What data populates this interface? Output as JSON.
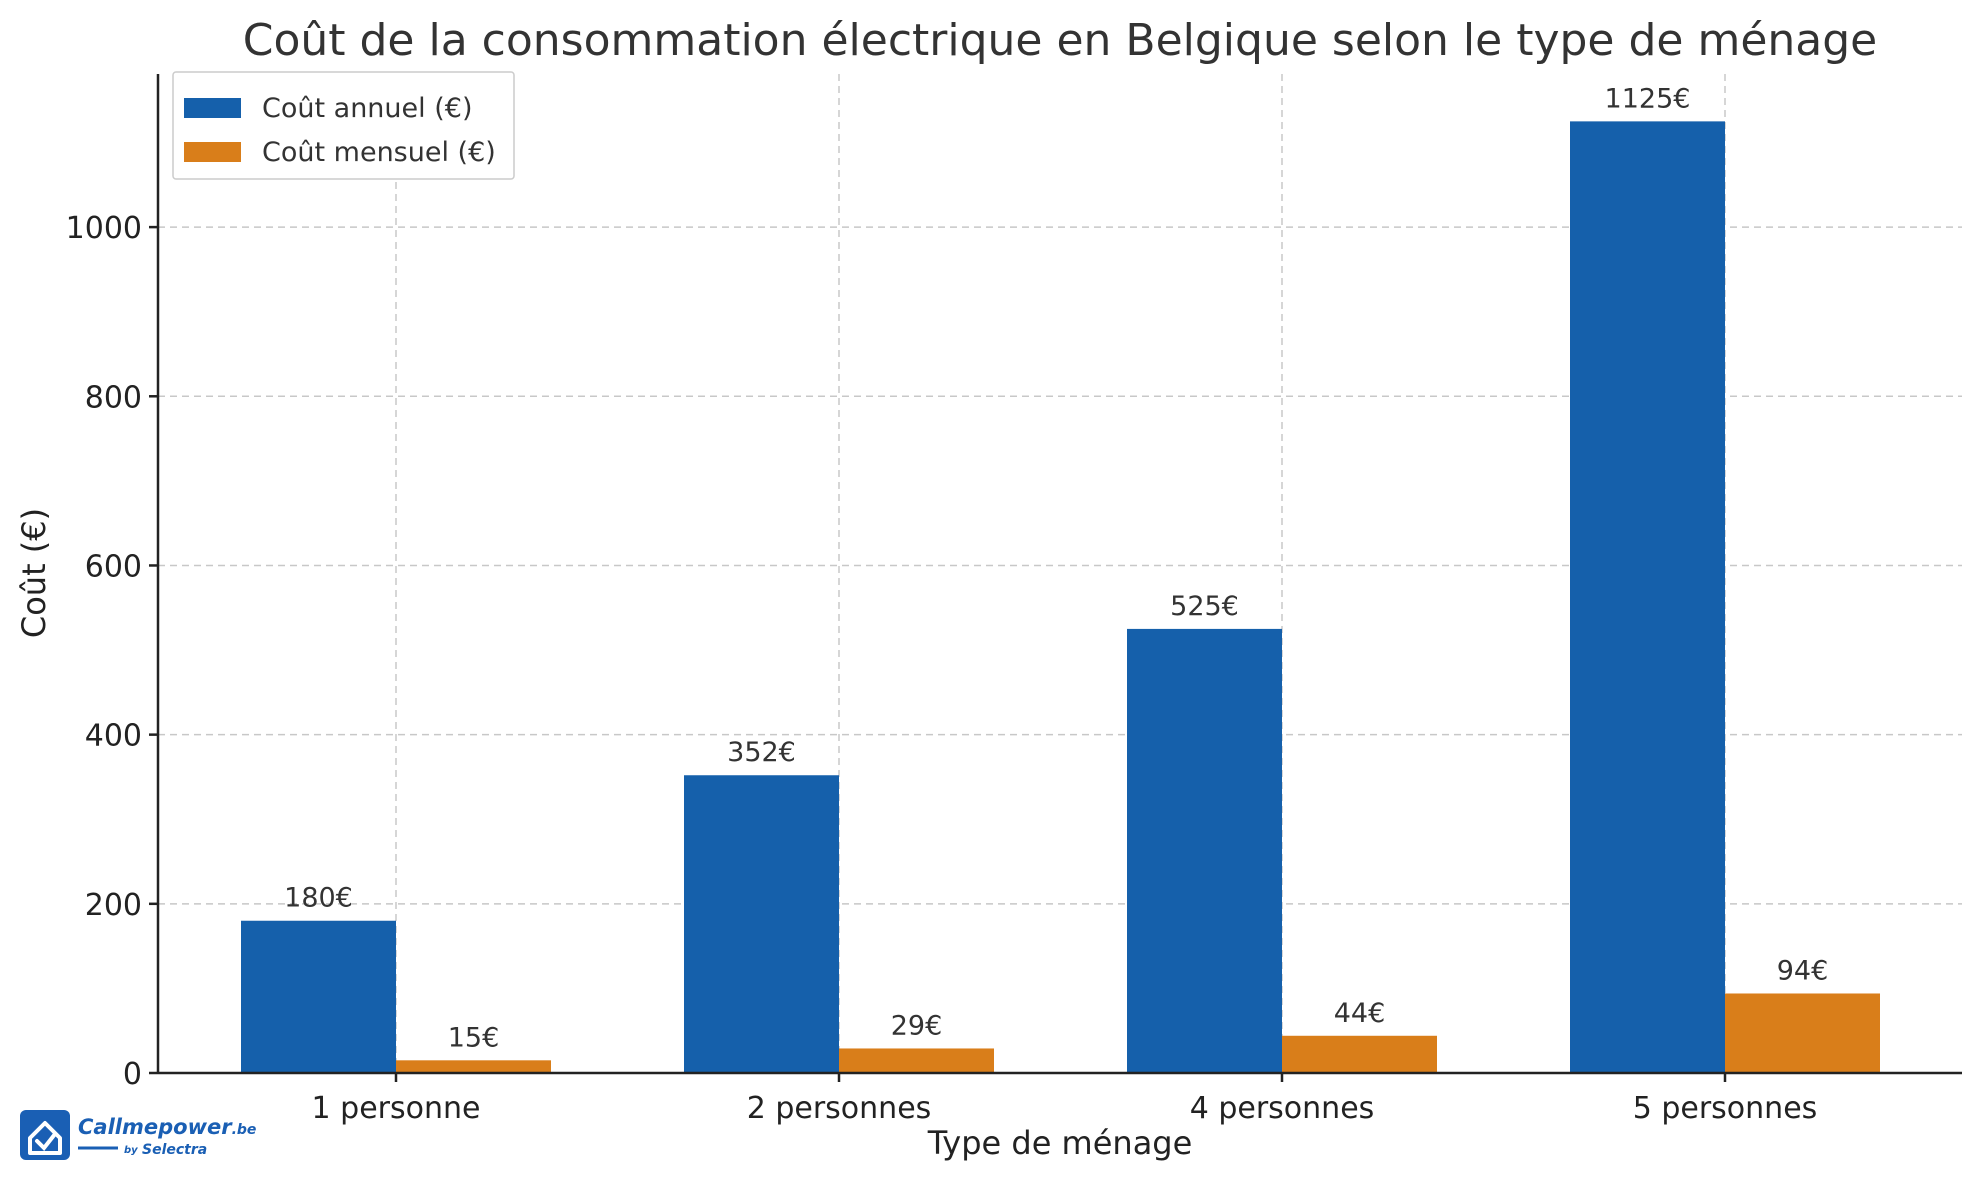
{
  "colors": {
    "annual": "#1560ab",
    "monthly": "#d97e1a",
    "logo": "#1a5fb4"
  },
  "logo": {
    "icon": "house-check-icon",
    "name": "Callmepower",
    "tld": ".be",
    "by": "by",
    "partner": "Selectra"
  },
  "chart_data": {
    "type": "bar",
    "title": "Coût de la consommation électrique en Belgique selon le type de ménage",
    "xlabel": "Type de ménage",
    "ylabel": "Coût (€)",
    "categories": [
      "1 personne",
      "2 personnes",
      "4 personnes",
      "5 personnes"
    ],
    "series": [
      {
        "name": "Coût annuel (€)",
        "values": [
          180,
          352,
          525,
          1125
        ],
        "labels": [
          "180€",
          "352€",
          "525€",
          "1125€"
        ]
      },
      {
        "name": "Coût mensuel (€)",
        "values": [
          15,
          29,
          44,
          94
        ],
        "labels": [
          "15€",
          "29€",
          "44€",
          "94€"
        ]
      }
    ],
    "ylim": [
      0,
      1181
    ],
    "yticks": [
      0,
      200,
      400,
      600,
      800,
      1000
    ],
    "grid": true,
    "legend": "top-left"
  }
}
